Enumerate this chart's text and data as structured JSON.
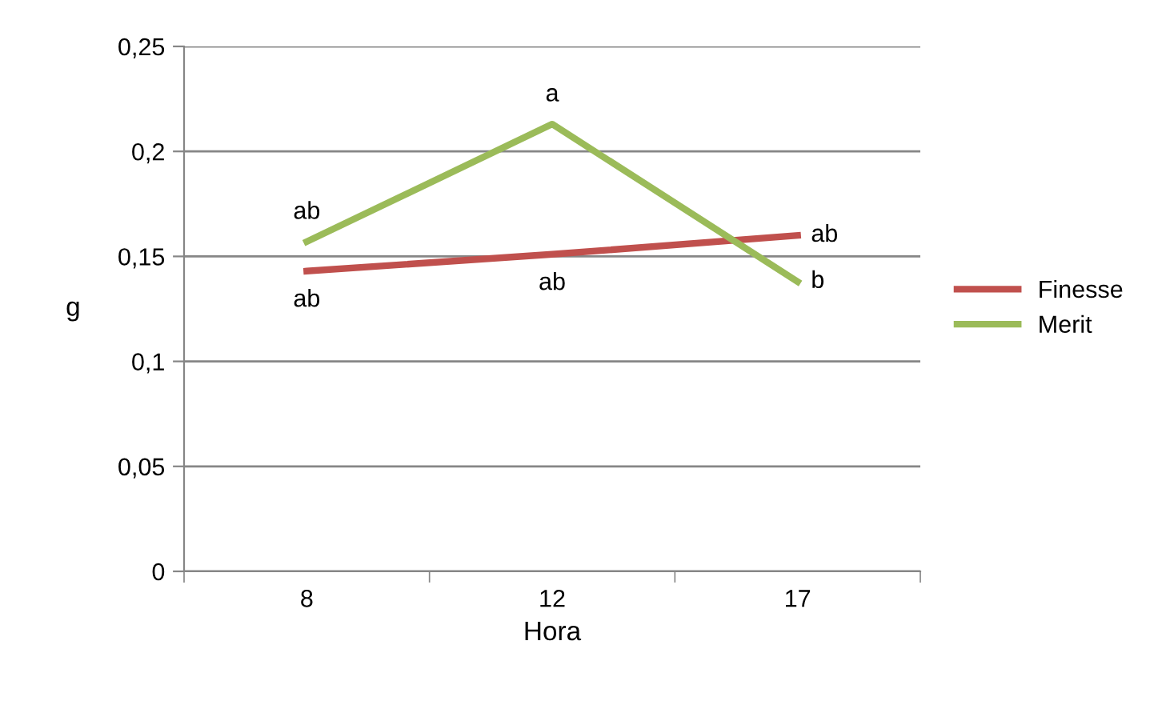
{
  "chart_data": {
    "type": "line",
    "xlabel": "Hora",
    "ylabel": "g",
    "categories": [
      "8",
      "12",
      "17"
    ],
    "series": [
      {
        "name": "Finesse",
        "color": "#c0504d",
        "values": [
          0.143,
          0.151,
          0.16
        ]
      },
      {
        "name": "Merit",
        "color": "#9bbb59",
        "values": [
          0.157,
          0.213,
          0.138
        ]
      }
    ],
    "ylim": [
      0,
      0.25
    ],
    "yticks": [
      {
        "value": 0,
        "label": "0"
      },
      {
        "value": 0.05,
        "label": "0,05"
      },
      {
        "value": 0.1,
        "label": "0,1"
      },
      {
        "value": 0.15,
        "label": "0,15"
      },
      {
        "value": 0.2,
        "label": "0,2"
      },
      {
        "value": 0.25,
        "label": "0,25"
      }
    ],
    "grid": "y",
    "legend": "right",
    "marker": "none",
    "line_style": "solid",
    "annotations": [
      {
        "text": "ab",
        "x": "8",
        "y": 0.157
      },
      {
        "text": "a",
        "x": "12",
        "y": 0.213
      },
      {
        "text": "b",
        "x": "17",
        "y": 0.138
      },
      {
        "text": "ab",
        "x": "8",
        "y": 0.143
      },
      {
        "text": "ab",
        "x": "12",
        "y": 0.151
      },
      {
        "text": "ab",
        "x": "17",
        "y": 0.16
      }
    ]
  }
}
